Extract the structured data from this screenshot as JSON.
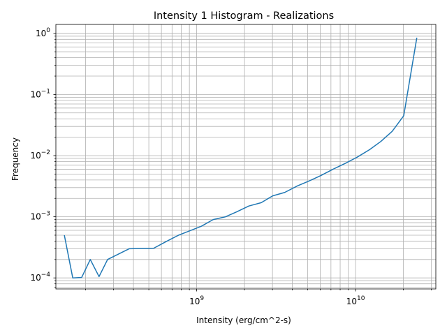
{
  "chart_data": {
    "type": "line",
    "title": "Intensity 1 Histogram - Realizations",
    "xlabel": "Intensity (erg/cm^2-s)",
    "ylabel": "Frequency",
    "xscale": "log",
    "yscale": "log",
    "xlim": [
      130000000,
      32000000000
    ],
    "ylim": [
      6.6e-05,
      1.4
    ],
    "x_major_ticks": [
      1000000000,
      10000000000
    ],
    "x_tick_labels": [
      {
        "base": "10",
        "exp": "9"
      },
      {
        "base": "10",
        "exp": "10"
      }
    ],
    "y_major_ticks": [
      0.0001,
      0.001,
      0.01,
      0.1,
      1
    ],
    "y_tick_labels": [
      {
        "base": "10",
        "exp": "−4"
      },
      {
        "base": "10",
        "exp": "−3"
      },
      {
        "base": "10",
        "exp": "−2"
      },
      {
        "base": "10",
        "exp": "−1"
      },
      {
        "base": "10",
        "exp": "0"
      }
    ],
    "grid": true,
    "grid_minor": true,
    "line_color": "#1f77b4",
    "series": [
      {
        "x": [
          147000000,
          166000000,
          189000000,
          214000000,
          243000000,
          275000000,
          376000000,
          536000000,
          651000000,
          770000000,
          920000000,
          1070000000,
          1270000000,
          1520000000,
          1780000000,
          2130000000,
          2550000000,
          3010000000,
          3580000000,
          4310000000,
          5040000000,
          6030000000,
          7220000000,
          8640000000,
          10280000000,
          12240000000,
          14400000000,
          17000000000,
          20100000000,
          24300000000
        ],
        "y": [
          0.0005,
          0.0001,
          0.000102,
          0.0002,
          0.000105,
          0.0002,
          0.0003,
          0.000305,
          0.0004,
          0.0005,
          0.0006,
          0.0007,
          0.0009,
          0.001,
          0.0012,
          0.0015,
          0.0017,
          0.0022,
          0.0025,
          0.0032,
          0.0038,
          0.0047,
          0.006,
          0.0075,
          0.0095,
          0.0125,
          0.017,
          0.025,
          0.045,
          0.85
        ]
      }
    ]
  }
}
